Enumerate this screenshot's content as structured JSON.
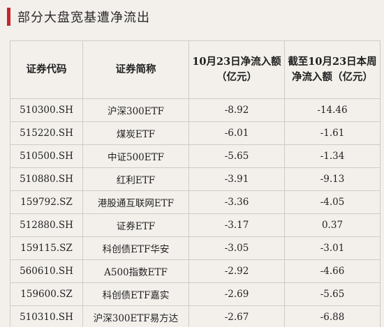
{
  "title": "部分大盘宽基遭净流出",
  "table": {
    "headers": {
      "code": "证券代码",
      "name": "证券简称",
      "daily_line1": "10月23日净流入额",
      "daily_line2": "（亿元）",
      "cum_line1": "截至10月23日本周",
      "cum_line2": "净流入额（亿元）"
    },
    "rows": [
      {
        "code": "510300.SH",
        "name": "沪深300ETF",
        "daily": "-8.92",
        "cumulative": "-14.46"
      },
      {
        "code": "515220.SH",
        "name": "煤炭ETF",
        "daily": "-6.01",
        "cumulative": "-1.61"
      },
      {
        "code": "510500.SH",
        "name": "中证500ETF",
        "daily": "-5.65",
        "cumulative": "-1.34"
      },
      {
        "code": "510880.SH",
        "name": "红利ETF",
        "daily": "-3.91",
        "cumulative": "-9.13"
      },
      {
        "code": "159792.SZ",
        "name": "港股通互联网ETF",
        "daily": "-3.36",
        "cumulative": "-4.05"
      },
      {
        "code": "512880.SH",
        "name": "证券ETF",
        "daily": "-3.17",
        "cumulative": "0.37"
      },
      {
        "code": "159115.SZ",
        "name": "科创债ETF华安",
        "daily": "-3.05",
        "cumulative": "-3.01"
      },
      {
        "code": "560610.SH",
        "name": "A500指数ETF",
        "daily": "-2.92",
        "cumulative": "-4.66"
      },
      {
        "code": "159600.SZ",
        "name": "科创债ETF嘉实",
        "daily": "-2.69",
        "cumulative": "-5.65"
      },
      {
        "code": "510310.SH",
        "name": "沪深300ETF易方达",
        "daily": "-2.67",
        "cumulative": "-6.88"
      }
    ]
  },
  "colors": {
    "accent": "#c8232c",
    "background": "#f3f0ec",
    "border": "#cfcac4"
  }
}
